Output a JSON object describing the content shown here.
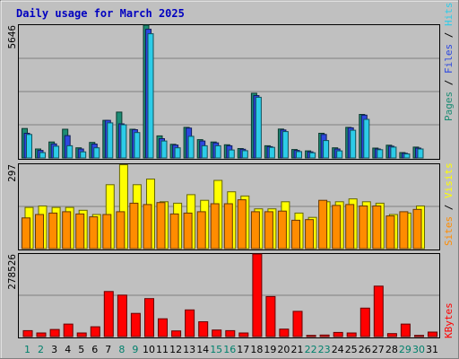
{
  "title": "Daily usage for March 2025",
  "colors": {
    "pages": "#1c8c74",
    "files": "#2c48e0",
    "hits": "#2ccce8",
    "visits": "#ffff00",
    "sites": "#ff8c00",
    "kbytes": "#ff0000",
    "title": "#0000c0",
    "weekend": "#00806c",
    "weekday": "#000000",
    "panel": "#c0c0c0",
    "frame": "#808080"
  },
  "chart_data": [
    {
      "type": "bar",
      "name": "hits-files-pages",
      "ymax_label": "5646",
      "ylim": [
        0,
        5646
      ],
      "legend": [
        "Pages",
        "/",
        "Files",
        "/",
        "Hits"
      ],
      "categories": [
        "1",
        "2",
        "3",
        "4",
        "5",
        "6",
        "7",
        "8",
        "9",
        "10",
        "11",
        "12",
        "13",
        "14",
        "15",
        "16",
        "17",
        "18",
        "19",
        "20",
        "21",
        "22",
        "23",
        "24",
        "25",
        "26",
        "27",
        "28",
        "29",
        "30",
        "31"
      ],
      "series": [
        {
          "name": "Pages",
          "values": [
            1250,
            380,
            680,
            1220,
            430,
            660,
            1600,
            1950,
            1220,
            5646,
            940,
            580,
            1300,
            780,
            680,
            560,
            400,
            2750,
            520,
            1230,
            360,
            300,
            1050,
            430,
            1300,
            1850,
            420,
            540,
            230,
            460,
            0
          ]
        },
        {
          "name": "Files",
          "values": [
            1050,
            320,
            600,
            950,
            380,
            590,
            1600,
            1450,
            1200,
            5470,
            820,
            550,
            1270,
            720,
            640,
            520,
            370,
            2650,
            480,
            1190,
            320,
            260,
            1000,
            380,
            1280,
            1820,
            380,
            500,
            200,
            420,
            0
          ]
        },
        {
          "name": "Hits",
          "values": [
            1000,
            230,
            500,
            520,
            260,
            430,
            1490,
            1410,
            1080,
            5280,
            720,
            430,
            920,
            520,
            520,
            340,
            310,
            2580,
            450,
            1120,
            270,
            220,
            740,
            300,
            1180,
            1640,
            350,
            460,
            170,
            380,
            0
          ]
        }
      ]
    },
    {
      "type": "bar",
      "name": "visits-sites",
      "ymax_label": "297",
      "ylim": [
        0,
        297
      ],
      "legend": [
        "Sites",
        "/",
        "Visits"
      ],
      "categories": [
        "1",
        "2",
        "3",
        "4",
        "5",
        "6",
        "7",
        "8",
        "9",
        "10",
        "11",
        "12",
        "13",
        "14",
        "15",
        "16",
        "17",
        "18",
        "19",
        "20",
        "21",
        "22",
        "23",
        "24",
        "25",
        "26",
        "27",
        "28",
        "29",
        "30",
        "31"
      ],
      "series": [
        {
          "name": "Visits",
          "values": [
            145,
            150,
            145,
            145,
            135,
            120,
            225,
            295,
            225,
            245,
            165,
            160,
            190,
            170,
            240,
            200,
            185,
            140,
            140,
            165,
            125,
            110,
            165,
            165,
            175,
            165,
            160,
            120,
            125,
            150,
            0
          ]
        },
        {
          "name": "Sites",
          "values": [
            108,
            120,
            125,
            130,
            122,
            112,
            120,
            130,
            160,
            155,
            162,
            122,
            125,
            130,
            158,
            158,
            172,
            130,
            130,
            132,
            100,
            102,
            170,
            152,
            155,
            150,
            150,
            115,
            130,
            138,
            0
          ]
        }
      ]
    },
    {
      "type": "bar",
      "name": "kbytes",
      "ymax_label": "278526",
      "ylim": [
        0,
        278526
      ],
      "legend": [
        "KBytes"
      ],
      "categories": [
        "1",
        "2",
        "3",
        "4",
        "5",
        "6",
        "7",
        "8",
        "9",
        "10",
        "11",
        "12",
        "13",
        "14",
        "15",
        "16",
        "17",
        "18",
        "19",
        "20",
        "21",
        "22",
        "23",
        "24",
        "25",
        "26",
        "27",
        "28",
        "29",
        "30",
        "31"
      ],
      "series": [
        {
          "name": "KBytes",
          "values": [
            20000,
            12000,
            24000,
            42000,
            12000,
            33000,
            152000,
            140000,
            78000,
            128000,
            60000,
            19000,
            90000,
            50000,
            22000,
            20000,
            12000,
            278526,
            135000,
            25000,
            85000,
            4000,
            5000,
            14000,
            12000,
            96000,
            170000,
            10000,
            42000,
            4000,
            15000
          ]
        }
      ]
    }
  ],
  "weekend_days": [
    "1",
    "2",
    "8",
    "9",
    "15",
    "16",
    "22",
    "23",
    "29",
    "30"
  ]
}
